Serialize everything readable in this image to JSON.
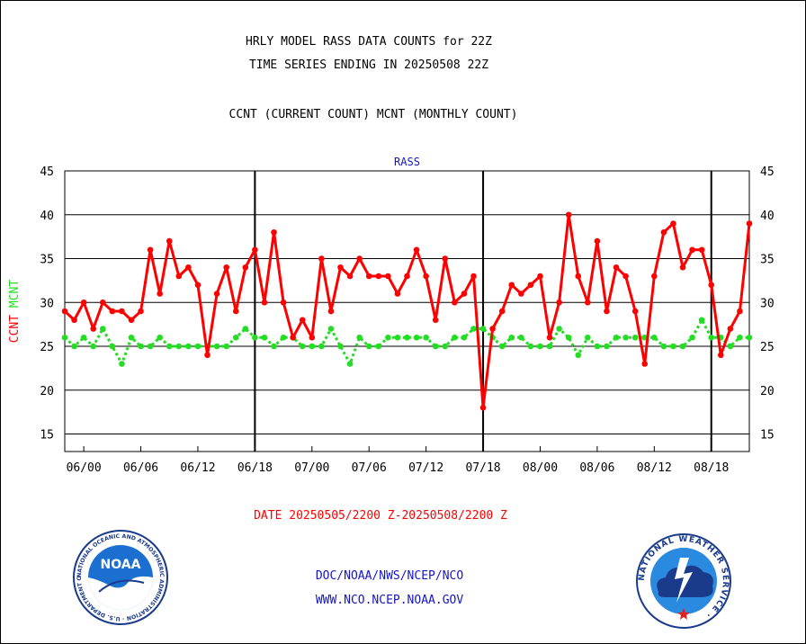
{
  "header": {
    "title_line1": "HRLY MODEL RASS DATA COUNTS for 22Z",
    "title_line2": "TIME SERIES ENDING IN 20250508 22Z",
    "subtitle": "CCNT (CURRENT COUNT) MCNT (MONTHLY COUNT)"
  },
  "footer": {
    "date_range": "DATE 20250505/2200 Z-20250508/2200 Z",
    "org_line": "DOC/NOAA/NWS/NCEP/NCO",
    "url_line": "WWW.NCO.NCEP.NOAA.GOV"
  },
  "logos": {
    "noaa_text": "NOAA",
    "noaa_ring_text": "NATIONAL OCEANIC AND ATMOSPHERIC ADMINISTRATION · U.S. DEPARTMENT OF COMMERCE ·",
    "nws_ring_text": "NATIONAL WEATHER SERVICE ·"
  },
  "colors": {
    "ccnt": "#ff0000",
    "mcnt": "#22dd22",
    "label_blue": "#1515c8",
    "grid": "#000000"
  },
  "chart_data": {
    "type": "line",
    "title": "RASS",
    "ylabel_parts": [
      "CCNT",
      "MCNT"
    ],
    "ylim": [
      13,
      45
    ],
    "yticks": [
      15,
      20,
      25,
      30,
      35,
      40,
      45
    ],
    "xtick_labels": [
      "06/00",
      "06/06",
      "06/12",
      "06/18",
      "07/00",
      "07/06",
      "07/12",
      "07/18",
      "08/00",
      "08/06",
      "08/12",
      "08/18"
    ],
    "xtick_hours": [
      2,
      8,
      14,
      20,
      26,
      32,
      38,
      44,
      50,
      56,
      62,
      68
    ],
    "day_boundaries_hours": [
      20,
      44,
      68
    ],
    "x_hours_range": [
      0,
      72
    ],
    "grid": true,
    "series": [
      {
        "name": "CCNT",
        "values": [
          29,
          28,
          30,
          27,
          30,
          29,
          29,
          28,
          29,
          36,
          31,
          37,
          33,
          34,
          32,
          24,
          31,
          34,
          29,
          34,
          36,
          30,
          38,
          30,
          26,
          28,
          26,
          35,
          29,
          34,
          33,
          35,
          33,
          33,
          33,
          31,
          33,
          36,
          33,
          28,
          35,
          30,
          31,
          33,
          18,
          27,
          29,
          32,
          31,
          32,
          33,
          26,
          30,
          40,
          33,
          30,
          37,
          29,
          34,
          33,
          29,
          23,
          33,
          38,
          39,
          34,
          36,
          36,
          32,
          24,
          27,
          29,
          39
        ]
      },
      {
        "name": "MCNT",
        "values": [
          26,
          25,
          26,
          25,
          27,
          25,
          23,
          26,
          25,
          25,
          26,
          25,
          25,
          25,
          25,
          25,
          25,
          25,
          26,
          27,
          26,
          26,
          25,
          26,
          26,
          25,
          25,
          25,
          27,
          25,
          23,
          26,
          25,
          25,
          26,
          26,
          26,
          26,
          26,
          25,
          25,
          26,
          26,
          27,
          27,
          26,
          25,
          26,
          26,
          25,
          25,
          25,
          27,
          26,
          24,
          26,
          25,
          25,
          26,
          26,
          26,
          26,
          26,
          25,
          25,
          25,
          26,
          28,
          26,
          26,
          25,
          26,
          26
        ]
      }
    ]
  }
}
